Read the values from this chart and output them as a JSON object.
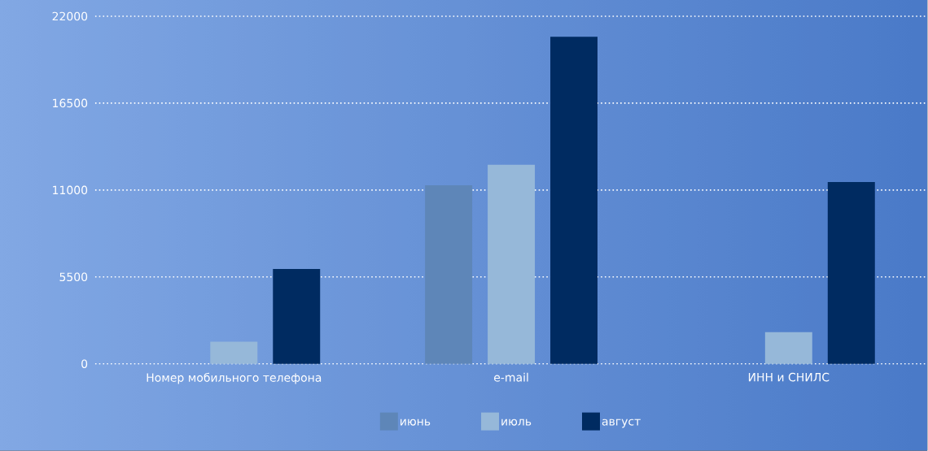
{
  "chart_data": {
    "type": "bar",
    "categories": [
      "Номер мобильного телефона",
      "e-mail",
      "ИНН и СНИЛС"
    ],
    "series": [
      {
        "name": "июнь",
        "color": "#5e86b8",
        "values": [
          null,
          11300,
          null
        ]
      },
      {
        "name": "июль",
        "color": "#96b8d9",
        "values": [
          1400,
          12600,
          2000
        ]
      },
      {
        "name": "август",
        "color": "#002b61",
        "values": [
          6000,
          20700,
          11500
        ]
      }
    ],
    "ylim": [
      0,
      22000
    ],
    "yticks": [
      0,
      5500,
      11000,
      16500,
      22000
    ],
    "grid": "y",
    "legend": "bottom"
  }
}
